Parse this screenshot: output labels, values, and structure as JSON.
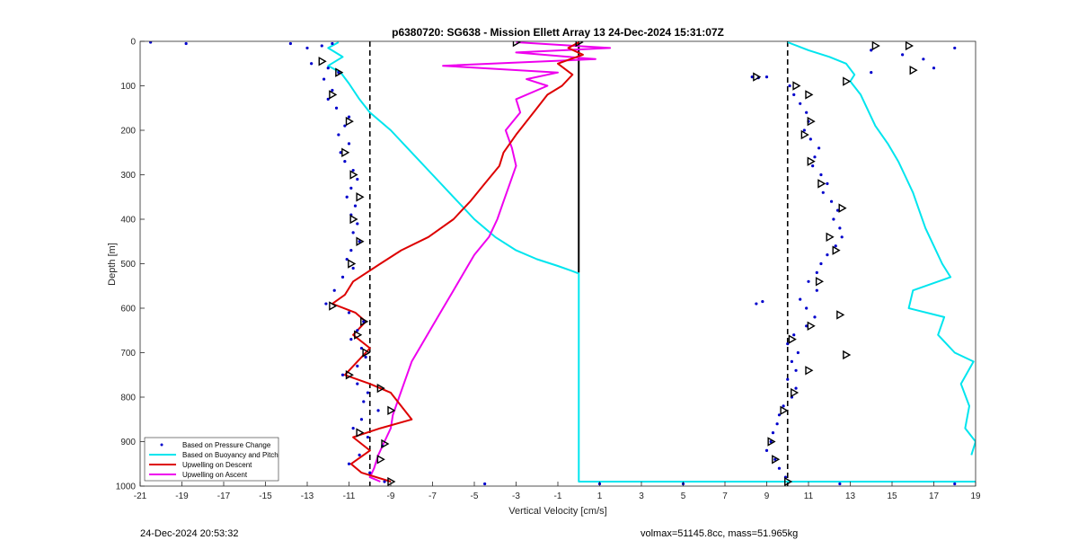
{
  "chart_data": {
    "type": "line",
    "title": "p6380720: SG638 - Mission Ellett Array 13 24-Dec-2024 15:31:07Z",
    "xlabel": "Vertical Velocity [cm/s]",
    "ylabel": "Depth [m]",
    "xlim": [
      -21,
      19
    ],
    "ylim": [
      0,
      1000
    ],
    "y_reversed": true,
    "x_ticks": [
      -21,
      -19,
      -17,
      -15,
      -13,
      -11,
      -9,
      -7,
      -5,
      -3,
      -1,
      1,
      3,
      5,
      7,
      9,
      11,
      13,
      15,
      17,
      19
    ],
    "y_ticks": [
      0,
      100,
      200,
      300,
      400,
      500,
      600,
      700,
      800,
      900,
      1000
    ],
    "grid": false,
    "legend_position": "bottom-left",
    "reference_lines": [
      {
        "style": "dashed",
        "color": "#000000",
        "x": -10
      },
      {
        "style": "dashed",
        "color": "#000000",
        "x": 10
      },
      {
        "style": "solid",
        "color": "#000000",
        "x": 0,
        "y_range": [
          0,
          520
        ]
      }
    ],
    "series": [
      {
        "name": "Based on Pressure Change",
        "style": "points",
        "color": "#0000cc",
        "points": [
          [
            -20.5,
            2
          ],
          [
            -18.8,
            5
          ],
          [
            -13.8,
            5
          ],
          [
            -13.0,
            15
          ],
          [
            -12.3,
            10
          ],
          [
            -11.8,
            5
          ],
          [
            -12.8,
            50
          ],
          [
            -12.0,
            60
          ],
          [
            -11.5,
            70
          ],
          [
            -12.2,
            85
          ],
          [
            -11.8,
            110
          ],
          [
            -12.0,
            130
          ],
          [
            -11.6,
            150
          ],
          [
            -11.0,
            170
          ],
          [
            -11.2,
            190
          ],
          [
            -11.5,
            210
          ],
          [
            -11.0,
            230
          ],
          [
            -11.4,
            250
          ],
          [
            -11.2,
            270
          ],
          [
            -10.8,
            290
          ],
          [
            -10.6,
            310
          ],
          [
            -10.9,
            330
          ],
          [
            -11.1,
            350
          ],
          [
            -10.7,
            370
          ],
          [
            -10.9,
            390
          ],
          [
            -10.6,
            410
          ],
          [
            -10.8,
            430
          ],
          [
            -10.5,
            450
          ],
          [
            -10.9,
            470
          ],
          [
            -11.1,
            490
          ],
          [
            -10.8,
            510
          ],
          [
            -11.3,
            530
          ],
          [
            -11.7,
            560
          ],
          [
            -12.1,
            590
          ],
          [
            -11.0,
            610
          ],
          [
            -10.3,
            630
          ],
          [
            -10.6,
            650
          ],
          [
            -10.9,
            670
          ],
          [
            -10.4,
            690
          ],
          [
            -10.2,
            710
          ],
          [
            -10.6,
            730
          ],
          [
            -11.3,
            750
          ],
          [
            -10.6,
            770
          ],
          [
            -10.1,
            790
          ],
          [
            -10.3,
            810
          ],
          [
            -9.6,
            830
          ],
          [
            -10.4,
            850
          ],
          [
            -10.8,
            870
          ],
          [
            -10.1,
            890
          ],
          [
            -9.4,
            910
          ],
          [
            -10.5,
            930
          ],
          [
            -11.0,
            950
          ],
          [
            -10.0,
            970
          ],
          [
            -9.3,
            990
          ],
          [
            -4.5,
            995
          ],
          [
            1.0,
            995
          ],
          [
            5.0,
            995
          ],
          [
            12.5,
            995
          ],
          [
            18.0,
            995
          ],
          [
            8.3,
            80
          ],
          [
            8.6,
            82
          ],
          [
            9.0,
            80
          ],
          [
            10.1,
            100
          ],
          [
            10.3,
            120
          ],
          [
            10.6,
            140
          ],
          [
            10.9,
            160
          ],
          [
            11.0,
            180
          ],
          [
            10.8,
            200
          ],
          [
            11.1,
            220
          ],
          [
            11.5,
            240
          ],
          [
            11.3,
            260
          ],
          [
            11.2,
            280
          ],
          [
            11.6,
            300
          ],
          [
            11.9,
            320
          ],
          [
            11.7,
            340
          ],
          [
            12.1,
            360
          ],
          [
            12.4,
            380
          ],
          [
            12.2,
            400
          ],
          [
            12.5,
            420
          ],
          [
            12.6,
            440
          ],
          [
            12.3,
            460
          ],
          [
            11.9,
            480
          ],
          [
            11.6,
            500
          ],
          [
            11.4,
            520
          ],
          [
            11.0,
            540
          ],
          [
            11.4,
            560
          ],
          [
            10.6,
            580
          ],
          [
            8.8,
            585
          ],
          [
            8.5,
            590
          ],
          [
            10.9,
            600
          ],
          [
            11.3,
            620
          ],
          [
            10.9,
            640
          ],
          [
            10.3,
            660
          ],
          [
            10.0,
            680
          ],
          [
            10.5,
            700
          ],
          [
            10.2,
            720
          ],
          [
            10.4,
            740
          ],
          [
            10.0,
            760
          ],
          [
            10.4,
            780
          ],
          [
            10.2,
            800
          ],
          [
            9.8,
            820
          ],
          [
            9.6,
            840
          ],
          [
            9.5,
            860
          ],
          [
            9.3,
            880
          ],
          [
            9.2,
            900
          ],
          [
            9.0,
            920
          ],
          [
            9.4,
            940
          ],
          [
            9.6,
            960
          ],
          [
            9.9,
            980
          ],
          [
            14.0,
            20
          ],
          [
            15.5,
            30
          ],
          [
            16.5,
            40
          ],
          [
            18.0,
            15
          ],
          [
            17.0,
            60
          ],
          [
            14.0,
            70
          ]
        ]
      },
      {
        "name": "Based on Buoyancy and Pitch",
        "style": "line",
        "color": "#00e5ee",
        "segments": [
          [
            [
              -11.5,
              2
            ],
            [
              -12.0,
              15
            ],
            [
              -11.3,
              35
            ],
            [
              -12.0,
              55
            ],
            [
              -11.4,
              70
            ],
            [
              -11.0,
              95
            ],
            [
              -10.5,
              130
            ],
            [
              -10.0,
              160
            ],
            [
              -9.0,
              200
            ],
            [
              -8.0,
              250
            ],
            [
              -7.0,
              300
            ],
            [
              -6.0,
              350
            ],
            [
              -5.0,
              400
            ],
            [
              -4.0,
              440
            ],
            [
              -3.0,
              470
            ],
            [
              -2.0,
              490
            ],
            [
              -1.0,
              505
            ],
            [
              -0.4,
              515
            ],
            [
              0,
              522
            ],
            [
              0,
              990
            ],
            [
              19,
              990
            ]
          ],
          [
            [
              10.0,
              2
            ],
            [
              11.0,
              20
            ],
            [
              12.0,
              35
            ],
            [
              12.8,
              50
            ],
            [
              13.2,
              75
            ],
            [
              13.0,
              90
            ],
            [
              13.5,
              120
            ],
            [
              13.8,
              150
            ],
            [
              14.2,
              190
            ],
            [
              14.8,
              230
            ],
            [
              15.3,
              270
            ],
            [
              15.6,
              300
            ],
            [
              16.0,
              340
            ],
            [
              16.3,
              380
            ],
            [
              16.6,
              420
            ],
            [
              17.0,
              460
            ],
            [
              17.4,
              500
            ],
            [
              17.8,
              530
            ],
            [
              16.0,
              560
            ],
            [
              15.8,
              600
            ],
            [
              17.5,
              620
            ],
            [
              17.2,
              660
            ],
            [
              18.0,
              700
            ],
            [
              18.9,
              720
            ],
            [
              18.3,
              770
            ],
            [
              18.7,
              820
            ],
            [
              18.5,
              870
            ],
            [
              19.0,
              900
            ],
            [
              18.8,
              930
            ]
          ]
        ]
      },
      {
        "name": "Upwelling on Descent",
        "style": "line",
        "color": "#dd0000",
        "points": [
          [
            0,
            2
          ],
          [
            -0.5,
            15
          ],
          [
            0.2,
            30
          ],
          [
            -1.0,
            50
          ],
          [
            -0.3,
            75
          ],
          [
            -0.8,
            100
          ],
          [
            -1.5,
            120
          ],
          [
            -2.0,
            150
          ],
          [
            -2.5,
            180
          ],
          [
            -3.0,
            210
          ],
          [
            -3.6,
            250
          ],
          [
            -3.8,
            280
          ],
          [
            -4.5,
            320
          ],
          [
            -5.2,
            360
          ],
          [
            -6.0,
            400
          ],
          [
            -7.2,
            440
          ],
          [
            -8.5,
            470
          ],
          [
            -9.5,
            500
          ],
          [
            -10.8,
            540
          ],
          [
            -11.2,
            570
          ],
          [
            -11.8,
            590
          ],
          [
            -10.7,
            610
          ],
          [
            -10.2,
            630
          ],
          [
            -10.8,
            660
          ],
          [
            -10.0,
            690
          ],
          [
            -10.6,
            720
          ],
          [
            -11.2,
            750
          ],
          [
            -10.0,
            770
          ],
          [
            -9.0,
            790
          ],
          [
            -8.5,
            820
          ],
          [
            -8.0,
            850
          ],
          [
            -9.5,
            870
          ],
          [
            -10.8,
            890
          ],
          [
            -10.0,
            920
          ],
          [
            -10.9,
            950
          ],
          [
            -10.4,
            970
          ],
          [
            -9.0,
            990
          ]
        ]
      },
      {
        "name": "Upwelling on Ascent",
        "style": "line",
        "color": "#ee00ee",
        "points": [
          [
            -3.0,
            2
          ],
          [
            1.5,
            15
          ],
          [
            -3.0,
            25
          ],
          [
            0.8,
            40
          ],
          [
            -6.5,
            55
          ],
          [
            -1.0,
            70
          ],
          [
            -2.5,
            85
          ],
          [
            -1.5,
            100
          ],
          [
            -3.0,
            130
          ],
          [
            -2.8,
            160
          ],
          [
            -3.5,
            200
          ],
          [
            -3.2,
            240
          ],
          [
            -3.0,
            280
          ],
          [
            -3.3,
            320
          ],
          [
            -3.6,
            360
          ],
          [
            -3.9,
            400
          ],
          [
            -4.3,
            440
          ],
          [
            -5.0,
            480
          ],
          [
            -5.5,
            520
          ],
          [
            -6.0,
            560
          ],
          [
            -6.5,
            600
          ],
          [
            -7.0,
            640
          ],
          [
            -7.5,
            680
          ],
          [
            -8.0,
            720
          ],
          [
            -8.3,
            760
          ],
          [
            -8.6,
            800
          ],
          [
            -8.9,
            840
          ],
          [
            -9.0,
            870
          ],
          [
            -9.3,
            900
          ],
          [
            -9.6,
            930
          ],
          [
            -9.8,
            960
          ],
          [
            -10.0,
            980
          ],
          [
            -9.5,
            990
          ]
        ]
      }
    ],
    "markers": [
      [
        -3.0,
        2
      ],
      [
        0.0,
        2
      ],
      [
        -12.3,
        45
      ],
      [
        -11.5,
        70
      ],
      [
        -11.8,
        120
      ],
      [
        -11.0,
        180
      ],
      [
        -11.2,
        250
      ],
      [
        -10.8,
        300
      ],
      [
        -10.5,
        350
      ],
      [
        -10.8,
        400
      ],
      [
        -10.5,
        450
      ],
      [
        -10.9,
        500
      ],
      [
        -11.8,
        595
      ],
      [
        -10.3,
        630
      ],
      [
        -10.6,
        660
      ],
      [
        -10.2,
        700
      ],
      [
        -11.0,
        750
      ],
      [
        -9.5,
        780
      ],
      [
        -9.0,
        830
      ],
      [
        -10.5,
        880
      ],
      [
        -9.3,
        905
      ],
      [
        -9.5,
        940
      ],
      [
        -9.0,
        990
      ],
      [
        8.5,
        80
      ],
      [
        16.0,
        65
      ],
      [
        15.8,
        10
      ],
      [
        14.2,
        10
      ],
      [
        12.8,
        90
      ],
      [
        10.4,
        100
      ],
      [
        11.0,
        120
      ],
      [
        11.1,
        180
      ],
      [
        10.8,
        210
      ],
      [
        11.1,
        270
      ],
      [
        11.6,
        320
      ],
      [
        12.6,
        375
      ],
      [
        12.0,
        440
      ],
      [
        12.3,
        470
      ],
      [
        11.5,
        540
      ],
      [
        12.5,
        615
      ],
      [
        11.1,
        640
      ],
      [
        10.2,
        670
      ],
      [
        12.8,
        705
      ],
      [
        11.0,
        740
      ],
      [
        10.3,
        790
      ],
      [
        9.8,
        830
      ],
      [
        9.2,
        900
      ],
      [
        9.4,
        940
      ],
      [
        10.0,
        990
      ]
    ],
    "legend_entries": [
      "Based on Pressure Change",
      "Based on Buoyancy and Pitch",
      "Upwelling on Descent",
      "Upwelling on Ascent"
    ]
  },
  "footer": {
    "timestamp": "24-Dec-2024 20:53:32",
    "info": "volmax=51145.8cc, mass=51.965kg"
  }
}
